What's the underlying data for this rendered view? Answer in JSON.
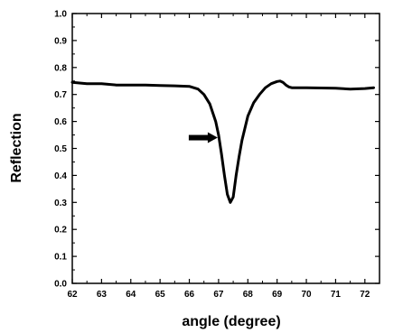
{
  "chart_data": {
    "type": "line",
    "title": "",
    "xlabel": "angle (degree)",
    "ylabel": "Reflection",
    "xlim": [
      62,
      72.5
    ],
    "ylim": [
      0.0,
      1.0
    ],
    "x_ticks": [
      "62",
      "63",
      "64",
      "65",
      "66",
      "67",
      "68",
      "69",
      "70",
      "71",
      "72"
    ],
    "y_ticks": [
      "0.0",
      "0.1",
      "0.2",
      "0.3",
      "0.4",
      "0.5",
      "0.6",
      "0.7",
      "0.8",
      "0.9",
      "1.0"
    ],
    "grid": false,
    "legend": "none",
    "line_color": "#000000",
    "annotations": [
      {
        "type": "arrow",
        "points_to_x": 67.0,
        "points_to_y": 0.54
      }
    ],
    "series": [
      {
        "x": [
          62.0,
          62.5,
          63.0,
          63.5,
          64.0,
          64.5,
          65.0,
          65.5,
          66.0,
          66.3,
          66.5,
          66.7,
          66.9,
          67.0,
          67.1,
          67.2,
          67.3,
          67.4,
          67.5,
          67.6,
          67.7,
          67.8,
          68.0,
          68.2,
          68.4,
          68.6,
          68.8,
          69.0,
          69.1,
          69.2,
          69.3,
          69.4,
          69.5,
          70.0,
          70.5,
          71.0,
          71.5,
          72.0,
          72.3
        ],
        "y": [
          0.745,
          0.74,
          0.74,
          0.735,
          0.735,
          0.735,
          0.733,
          0.732,
          0.73,
          0.72,
          0.7,
          0.665,
          0.6,
          0.55,
          0.48,
          0.4,
          0.33,
          0.3,
          0.32,
          0.4,
          0.47,
          0.53,
          0.62,
          0.67,
          0.7,
          0.725,
          0.74,
          0.748,
          0.75,
          0.745,
          0.735,
          0.728,
          0.725,
          0.725,
          0.724,
          0.723,
          0.72,
          0.722,
          0.725
        ]
      }
    ]
  }
}
